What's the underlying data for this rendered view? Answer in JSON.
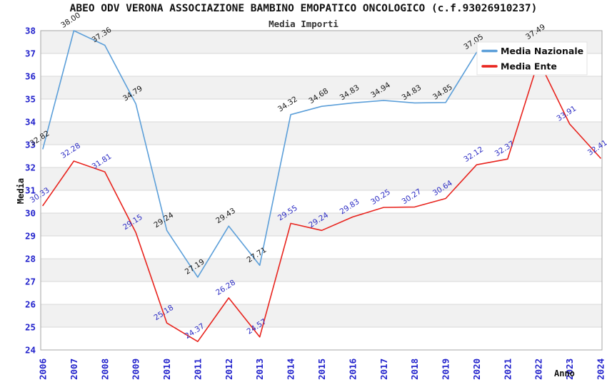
{
  "header": {
    "title": "ABEO ODV VERONA ASSOCIAZIONE BAMBINO EMOPATICO ONCOLOGICO (c.f.93026910237)",
    "subtitle": "Media Importi"
  },
  "chart_data": {
    "type": "line",
    "title": "ABEO ODV VERONA ASSOCIAZIONE BAMBINO EMOPATICO ONCOLOGICO (c.f.93026910237)",
    "subtitle": "Media Importi",
    "xlabel": "Anno",
    "ylabel": "Media",
    "ylim": [
      24,
      38
    ],
    "y_tick_step": 1,
    "grid": true,
    "striped_bands": true,
    "axis_tick_color": "#2222cc",
    "categories": [
      2006,
      2007,
      2008,
      2009,
      2010,
      2011,
      2012,
      2013,
      2014,
      2015,
      2016,
      2017,
      2018,
      2019,
      2020,
      2021,
      2022,
      2023,
      2024
    ],
    "legend": {
      "position": "top-right",
      "entries": [
        {
          "label": "Media Nazionale",
          "color": "#5c9fd9"
        },
        {
          "label": "Media Ente",
          "color": "#e8231d"
        }
      ]
    },
    "series": [
      {
        "name": "Media Nazionale",
        "color": "#5c9fd9",
        "label_color": "#1a1a1a",
        "points": [
          {
            "year": 2006,
            "value": 32.82,
            "label": "32.82"
          },
          {
            "year": 2007,
            "value": 38.0,
            "label": "38.00"
          },
          {
            "year": 2008,
            "value": 37.36,
            "label": "37.36"
          },
          {
            "year": 2009,
            "value": 34.79,
            "label": "34.79"
          },
          {
            "year": 2010,
            "value": 29.24,
            "label": "29.24"
          },
          {
            "year": 2011,
            "value": 27.19,
            "label": "27.19"
          },
          {
            "year": 2012,
            "value": 29.43,
            "label": "29.43"
          },
          {
            "year": 2013,
            "value": 27.71,
            "label": "27.71"
          },
          {
            "year": 2014,
            "value": 34.32,
            "label": "34.32"
          },
          {
            "year": 2015,
            "value": 34.68,
            "label": "34.68"
          },
          {
            "year": 2016,
            "value": 34.83,
            "label": "34.83"
          },
          {
            "year": 2017,
            "value": 34.94,
            "label": "34.94"
          },
          {
            "year": 2018,
            "value": 34.83,
            "label": "34.83"
          },
          {
            "year": 2019,
            "value": 34.85,
            "label": "34.85"
          },
          {
            "year": 2020,
            "value": 37.05,
            "label": "37.05"
          },
          {
            "year": 2021,
            "value": 36.9,
            "label": null,
            "estimated": true
          },
          {
            "year": 2022,
            "value": 37.49,
            "label": "37.49"
          }
        ]
      },
      {
        "name": "Media Ente",
        "color": "#e8231d",
        "label_color": "#2d2dc4",
        "points": [
          {
            "year": 2006,
            "value": 30.33,
            "label": "30.33"
          },
          {
            "year": 2007,
            "value": 32.28,
            "label": "32.28"
          },
          {
            "year": 2008,
            "value": 31.81,
            "label": "31.81"
          },
          {
            "year": 2009,
            "value": 29.15,
            "label": "29.15"
          },
          {
            "year": 2010,
            "value": 25.18,
            "label": "25.18"
          },
          {
            "year": 2011,
            "value": 24.37,
            "label": "24.37"
          },
          {
            "year": 2012,
            "value": 26.28,
            "label": "26.28"
          },
          {
            "year": 2013,
            "value": 24.57,
            "label": "24.57"
          },
          {
            "year": 2014,
            "value": 29.55,
            "label": "29.55"
          },
          {
            "year": 2015,
            "value": 29.24,
            "label": "29.24"
          },
          {
            "year": 2016,
            "value": 29.83,
            "label": "29.83"
          },
          {
            "year": 2017,
            "value": 30.25,
            "label": "30.25"
          },
          {
            "year": 2018,
            "value": 30.27,
            "label": "30.27"
          },
          {
            "year": 2019,
            "value": 30.64,
            "label": "30.64"
          },
          {
            "year": 2020,
            "value": 32.12,
            "label": "32.12"
          },
          {
            "year": 2021,
            "value": 32.37,
            "label": "32.37"
          },
          {
            "year": 2022,
            "value": 36.7,
            "label": null,
            "estimated": true
          },
          {
            "year": 2023,
            "value": 33.91,
            "label": "33.91"
          },
          {
            "year": 2024,
            "value": 32.41,
            "label": "32.41"
          }
        ]
      }
    ]
  }
}
